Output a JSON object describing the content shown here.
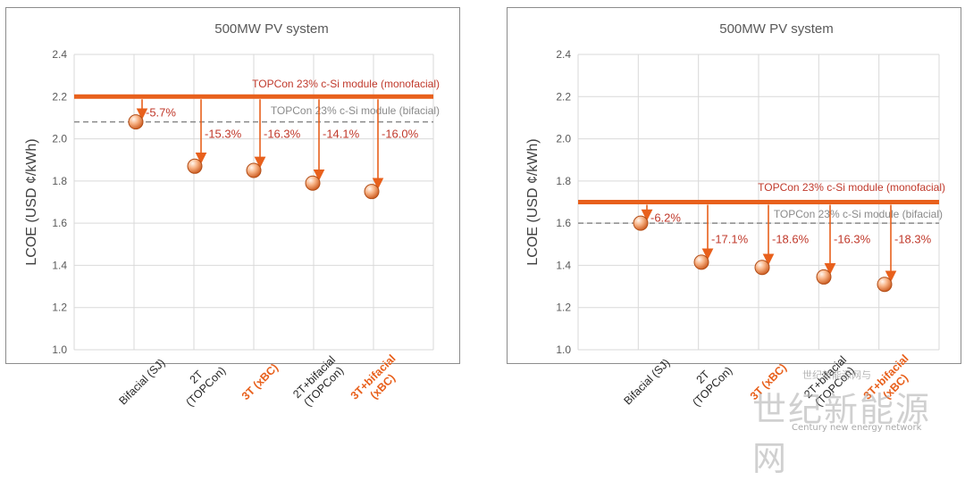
{
  "chart_data": [
    {
      "type": "scatter",
      "title": "500MW PV system",
      "ylabel": "LCOE (USD ¢/kWh)",
      "ylim": [
        1.0,
        2.4
      ],
      "yticks": [
        "1.0",
        "1.2",
        "1.4",
        "1.6",
        "1.8",
        "2.0",
        "2.2",
        "2.4"
      ],
      "grid": true,
      "categories": [
        {
          "lines": [
            "Bifacial (SJ)"
          ],
          "highlight": false
        },
        {
          "lines": [
            "2T",
            "(TOPCon)"
          ],
          "highlight": false
        },
        {
          "lines": [
            "3T (xBC)"
          ],
          "highlight": true
        },
        {
          "lines": [
            "2T+bifacial",
            "(TOPCon)"
          ],
          "highlight": false
        },
        {
          "lines": [
            "3T+bifacial",
            "(xBC)"
          ],
          "highlight": true
        }
      ],
      "values": [
        2.08,
        1.87,
        1.85,
        1.79,
        1.75
      ],
      "reductions": [
        "-5.7%",
        "-15.3%",
        "-16.3%",
        "-14.1%",
        "-16.0%"
      ],
      "reference_lines": [
        {
          "label": "TOPCon 23% c-Si module (monofacial)",
          "value": 2.2,
          "color": "#E8601C",
          "style": "solid"
        },
        {
          "label": "TOPCon 23% c-Si module (bifacial)",
          "value": 2.08,
          "color": "#8a8a8a",
          "style": "dashed"
        }
      ]
    },
    {
      "type": "scatter",
      "title": "500MW PV system",
      "ylabel": "LCOE (USD ¢/kWh)",
      "ylim": [
        1.0,
        2.4
      ],
      "yticks": [
        "1.0",
        "1.2",
        "1.4",
        "1.6",
        "1.8",
        "2.0",
        "2.2",
        "2.4"
      ],
      "grid": true,
      "categories": [
        {
          "lines": [
            "Bifacial (SJ)"
          ],
          "highlight": false
        },
        {
          "lines": [
            "2T",
            "(TOPCon)"
          ],
          "highlight": false
        },
        {
          "lines": [
            "3T (xBC)"
          ],
          "highlight": true
        },
        {
          "lines": [
            "2T+bifacial",
            "(TOPCon)"
          ],
          "highlight": false
        },
        {
          "lines": [
            "3T+bifacial",
            "(xBC)"
          ],
          "highlight": true
        }
      ],
      "values": [
        1.6,
        1.415,
        1.39,
        1.345,
        1.31
      ],
      "reductions": [
        "-6.2%",
        "-17.1%",
        "-18.6%",
        "-16.3%",
        "-18.3%"
      ],
      "reference_lines": [
        {
          "label": "TOPCon 23% c-Si module (monofacial)",
          "value": 1.7,
          "color": "#E8601C",
          "style": "solid"
        },
        {
          "label": "TOPCon 23% c-Si module (bifacial)",
          "value": 1.6,
          "color": "#8a8a8a",
          "style": "dashed"
        }
      ]
    }
  ],
  "colors": {
    "accent": "#E8601C",
    "annotation": "#C0392B",
    "reference_gray": "#8a8a8a",
    "grid": "#d9d9d9",
    "tick_text": "#595959"
  },
  "watermark": {
    "main": "世纪新能源网",
    "small": "Century new energy network",
    "top": "世纪新能源网与"
  }
}
